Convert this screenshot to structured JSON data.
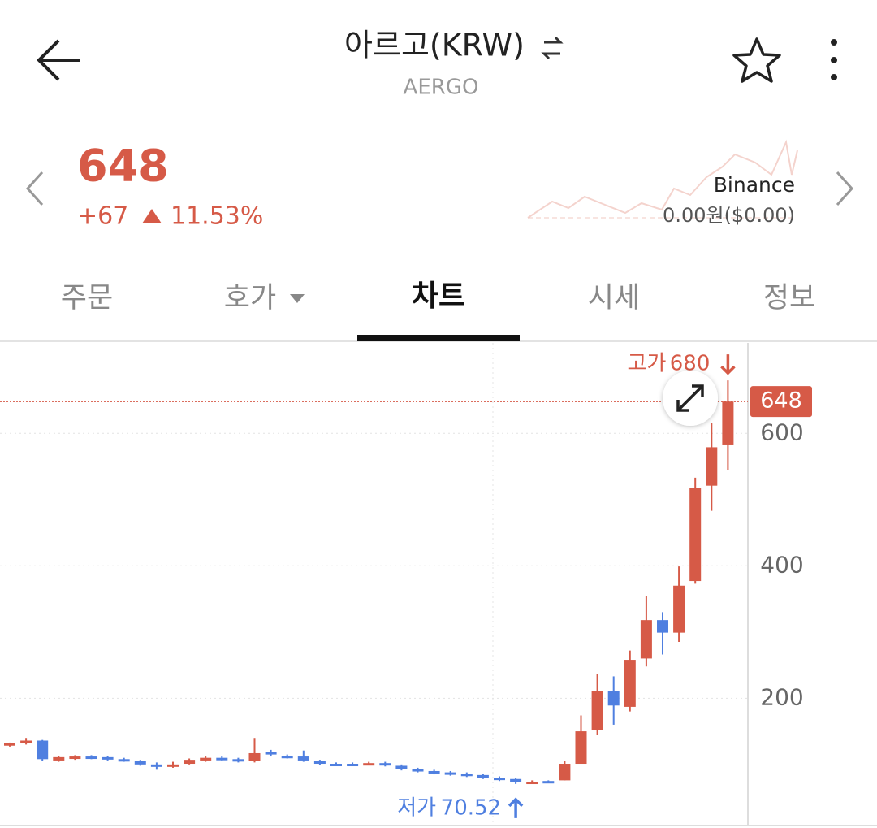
{
  "header": {
    "title": "아르고(KRW)",
    "subtitle": "AERGO"
  },
  "price": {
    "current": 648,
    "change": "+67",
    "change_percent": "11.53%",
    "exchange": "Binance",
    "exchange_price": "0.00원($0.00)"
  },
  "tabs": [
    "주문",
    "호가",
    "차트",
    "시세",
    "정보"
  ],
  "chart_data": {
    "type": "candlestick",
    "open": [
      129,
      134,
      136,
      106,
      109,
      112,
      111,
      108,
      105,
      100,
      97,
      101,
      106,
      110,
      108,
      105,
      119,
      113,
      112,
      105,
      101,
      101,
      100,
      102,
      98,
      93,
      90,
      88,
      86,
      84,
      80,
      78,
      72,
      75,
      76,
      101,
      152,
      211,
      187,
      260,
      318,
      299,
      377,
      521,
      582
    ],
    "high": [
      133,
      140,
      137,
      113,
      114,
      114,
      113,
      110,
      107,
      103,
      104,
      109,
      112,
      112,
      110,
      140,
      122,
      115,
      121,
      107,
      103,
      103,
      104,
      104,
      100,
      95,
      92,
      90,
      88,
      86,
      82,
      80,
      76,
      76,
      105,
      174,
      236,
      233,
      272,
      355,
      330,
      399,
      533,
      616,
      680
    ],
    "low": [
      127,
      130,
      105,
      104,
      107,
      108,
      106,
      104,
      98,
      92,
      95,
      100,
      104,
      106,
      103,
      103,
      112,
      109,
      104,
      99,
      98,
      99,
      99,
      97,
      91,
      88,
      85,
      83,
      81,
      78,
      75,
      70.52,
      71,
      73,
      76,
      101,
      144,
      160,
      180,
      248,
      266,
      285,
      373,
      483,
      545
    ],
    "close": [
      132,
      136,
      108,
      111,
      112,
      110,
      108,
      106,
      100,
      97,
      100,
      107,
      110,
      108,
      105,
      117,
      115,
      111,
      106,
      101,
      100,
      100,
      102,
      99,
      93,
      90,
      87,
      85,
      83,
      80,
      77,
      73,
      74,
      74,
      101,
      150,
      211,
      189,
      258,
      318,
      299,
      370,
      518,
      579,
      648
    ],
    "up_color": "#d65a47",
    "down_color": "#4f7fe0",
    "ylim": [
      9,
      739
    ],
    "yticks": [
      200,
      400,
      600
    ],
    "grid": true,
    "current_price": 648,
    "high_label": "고가",
    "high_value": 680,
    "low_label": "저가",
    "low_value": 70.52
  }
}
